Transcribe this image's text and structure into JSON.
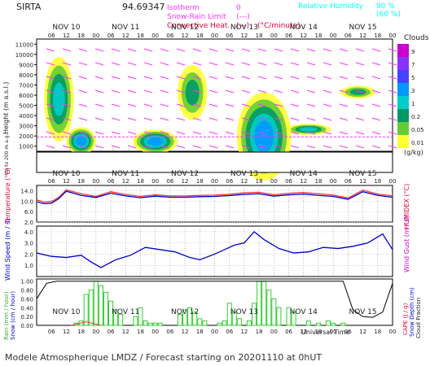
{
  "header": {
    "station": "SIRTA",
    "coords": "94.69347",
    "legend_left": [
      {
        "label": "Isotherm",
        "key": "0",
        "color": "#ff33ff"
      },
      {
        "label": "Snow-Rain Limit",
        "key": "(---)",
        "color": "#ff33ff"
      },
      {
        "label": "Convective Heat.",
        "key": "(—)",
        "unit": "(°C/minute)",
        "color": "#e8003a"
      }
    ],
    "legend_right": [
      {
        "label": "Relative Humidity",
        "value": "90 %",
        "color": "#00ffff"
      },
      {
        "value": "(60 %)",
        "color": "#00ffff"
      }
    ]
  },
  "time_axis": {
    "day_labels": [
      "NOV 10",
      "NOV 11",
      "NOV 12",
      "NOV 13",
      "NOV 14",
      "NOV 15"
    ],
    "hour_labels": [
      "06",
      "12",
      "18",
      "00"
    ],
    "universal_time_label": "Universal Time"
  },
  "panel_labels": {
    "height": "Height  (m a.s.l.)",
    "low_height": "Up to 200 m a.g.l.",
    "clouds": "Clouds",
    "clouds_unit": "(g/kg)",
    "temperature": "Temperature (°C)",
    "humidex": "HUMIDEX (°C)",
    "wind_speed": "Wind Speed (m / s)",
    "wind_gust": "Wind Gust (m / s)",
    "rain": "Rain (mm / hour)",
    "snow": "Snow (cm / hour)",
    "cape": "CAPE (J / g)",
    "snow_depth": "Snow Depth (cm)",
    "cloud_fraction": "Cloud Fraction"
  },
  "footer": "Modele Atmospherique LMDZ / Forecast starting on 20201110 at 0hUT",
  "chart_data": [
    {
      "type": "heatmap",
      "name": "cloud-cross-section",
      "y_ticks": [
        1000,
        2000,
        3000,
        4000,
        5000,
        6000,
        7000,
        8000,
        9000,
        10000,
        11000
      ],
      "ylim": [
        500,
        11500
      ],
      "xlim": [
        0,
        144
      ],
      "colorbar": {
        "values": [
          "9",
          "7",
          "5",
          "3",
          "1",
          "0.2",
          "0.05",
          "0.01"
        ],
        "colors": [
          "#cc00cc",
          "#8833ff",
          "#4444ff",
          "#0099ff",
          "#00cccc",
          "#009966",
          "#66cc33",
          "#ffff33"
        ]
      },
      "cloud_blobs": [
        {
          "x": [
            4,
            9,
            16,
            22
          ],
          "y": [
            1400,
            6000,
            9800,
            2000
          ],
          "level": 4
        },
        {
          "x": [
            14,
            18,
            26
          ],
          "y": [
            1500,
            3000,
            1500
          ],
          "level": 5
        },
        {
          "x": [
            38,
            48,
            56
          ],
          "y": [
            1300,
            2600,
            1600
          ],
          "level": 5
        },
        {
          "x": [
            58,
            63,
            70
          ],
          "y": [
            6500,
            9000,
            6000
          ],
          "level": 3
        },
        {
          "x": [
            78,
            92,
            100
          ],
          "y": [
            1700,
            6500,
            2200
          ],
          "level": 5
        },
        {
          "x": [
            100,
            110,
            118
          ],
          "y": [
            2600,
            3200,
            2700
          ],
          "level": 4
        },
        {
          "x": [
            124,
            130,
            138
          ],
          "y": [
            6300,
            7000,
            6300
          ],
          "level": 3
        }
      ]
    },
    {
      "type": "line",
      "name": "temperature",
      "ylim": [
        2,
        16
      ],
      "y_ticks": [
        2.0,
        6.0,
        10.0,
        14.0
      ],
      "series": [
        {
          "color": "#ff3333",
          "x": [
            0,
            3,
            6,
            9,
            12,
            18,
            24,
            30,
            36,
            42,
            48,
            54,
            60,
            66,
            72,
            78,
            84,
            90,
            96,
            102,
            108,
            114,
            120,
            126,
            132,
            138,
            144
          ],
          "values": [
            10.5,
            9.6,
            9.8,
            11.5,
            14.3,
            12.8,
            11.8,
            13.6,
            12.5,
            11.8,
            12.4,
            12.0,
            12.0,
            12.2,
            12.3,
            12.6,
            13.2,
            13.4,
            12.4,
            13.0,
            13.3,
            12.8,
            12.3,
            11.2,
            14.2,
            12.7,
            12.0
          ]
        },
        {
          "color": "#0000cc",
          "x": [
            0,
            3,
            6,
            9,
            12,
            18,
            24,
            30,
            36,
            42,
            48,
            54,
            60,
            66,
            72,
            78,
            84,
            90,
            96,
            102,
            108,
            114,
            120,
            126,
            132,
            138,
            144
          ],
          "values": [
            9.8,
            9.0,
            9.2,
            11.0,
            13.8,
            12.2,
            11.4,
            13.0,
            12.0,
            11.3,
            11.9,
            11.5,
            11.5,
            11.7,
            11.8,
            12.1,
            12.6,
            12.8,
            11.9,
            12.4,
            12.7,
            12.2,
            11.8,
            10.7,
            13.6,
            12.2,
            11.5
          ]
        }
      ]
    },
    {
      "type": "line",
      "name": "wind",
      "ylim": [
        0,
        4.5
      ],
      "y_ticks": [
        1.0,
        2.0,
        3.0,
        4.0
      ],
      "series": [
        {
          "color": "#0000cc",
          "x": [
            0,
            6,
            12,
            18,
            22,
            26,
            32,
            38,
            44,
            50,
            56,
            62,
            66,
            72,
            76,
            80,
            84,
            88,
            92,
            98,
            104,
            110,
            116,
            122,
            128,
            134,
            140,
            144
          ],
          "values": [
            2.1,
            1.8,
            1.7,
            1.9,
            1.3,
            0.8,
            1.5,
            1.9,
            2.6,
            2.4,
            2.2,
            1.7,
            1.5,
            2.0,
            2.4,
            2.8,
            3.0,
            4.0,
            3.3,
            2.5,
            2.1,
            2.2,
            2.6,
            2.5,
            2.7,
            3.0,
            3.8,
            2.4
          ]
        }
      ]
    },
    {
      "type": "bar",
      "name": "precipitation",
      "ylim": [
        0,
        1.05
      ],
      "y_ticks": [
        0.0,
        0.2,
        0.4,
        0.6,
        0.8,
        1.0
      ],
      "categories_x": [
        16,
        18,
        20,
        22,
        24,
        26,
        28,
        30,
        32,
        34,
        40,
        42,
        44,
        46,
        48,
        50,
        58,
        60,
        62,
        64,
        66,
        68,
        74,
        76,
        78,
        80,
        82,
        86,
        88,
        90,
        92,
        94,
        96,
        98,
        102,
        104,
        110,
        114,
        118,
        120,
        124
      ],
      "values": [
        0.05,
        0.1,
        0.7,
        0.8,
        1.0,
        0.9,
        0.75,
        0.55,
        0.35,
        0.25,
        0.2,
        0.4,
        0.1,
        0.05,
        0.05,
        0.05,
        0.25,
        0.35,
        0.4,
        0.3,
        0.15,
        0.1,
        0.05,
        0.1,
        0.5,
        0.3,
        0.15,
        0.1,
        0.5,
        1.0,
        1.0,
        0.8,
        0.6,
        0.4,
        0.4,
        0.3,
        0.1,
        0.05,
        0.1,
        0.05,
        0.05
      ],
      "bar_color": "#33cc33",
      "cloud_fraction": {
        "color": "#000000",
        "x": [
          0,
          4,
          8,
          12,
          16,
          20,
          24,
          28,
          32,
          36,
          40,
          44,
          48,
          52,
          56,
          60,
          64,
          68,
          72,
          76,
          80,
          84,
          88,
          92,
          96,
          100,
          104,
          108,
          112,
          116,
          120,
          124,
          128,
          132,
          136,
          140,
          144
        ],
        "values": [
          0.6,
          0.95,
          1.0,
          1.0,
          1.0,
          1.0,
          1.0,
          1.0,
          1.0,
          1.0,
          1.0,
          1.0,
          1.0,
          1.0,
          1.0,
          1.0,
          1.0,
          1.0,
          1.0,
          1.0,
          1.0,
          1.0,
          1.0,
          1.0,
          1.0,
          1.0,
          1.0,
          1.0,
          1.0,
          1.0,
          1.0,
          1.0,
          0.35,
          0.2,
          0.18,
          0.3,
          0.95
        ]
      },
      "cape": {
        "color": "#ff3333",
        "x": [
          14,
          20,
          26
        ],
        "values": [
          0.0,
          0.08,
          0.0
        ]
      }
    }
  ]
}
